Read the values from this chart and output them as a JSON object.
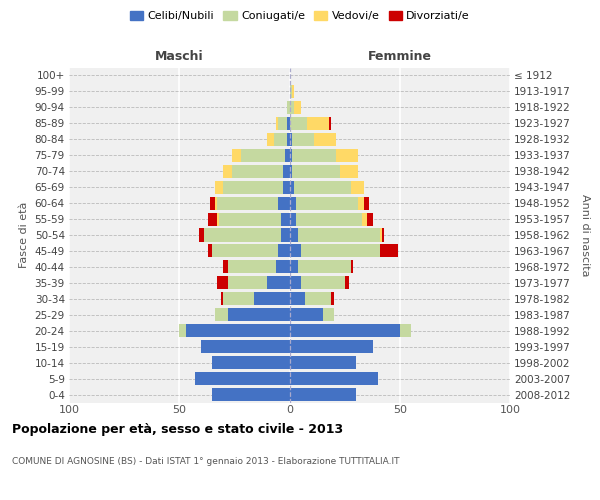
{
  "age_groups": [
    "0-4",
    "5-9",
    "10-14",
    "15-19",
    "20-24",
    "25-29",
    "30-34",
    "35-39",
    "40-44",
    "45-49",
    "50-54",
    "55-59",
    "60-64",
    "65-69",
    "70-74",
    "75-79",
    "80-84",
    "85-89",
    "90-94",
    "95-99",
    "100+"
  ],
  "birth_years": [
    "2008-2012",
    "2003-2007",
    "1998-2002",
    "1993-1997",
    "1988-1992",
    "1983-1987",
    "1978-1982",
    "1973-1977",
    "1968-1972",
    "1963-1967",
    "1958-1962",
    "1953-1957",
    "1948-1952",
    "1943-1947",
    "1938-1942",
    "1933-1937",
    "1928-1932",
    "1923-1927",
    "1918-1922",
    "1913-1917",
    "≤ 1912"
  ],
  "colors": {
    "celibi": "#4472c4",
    "coniugati": "#c5d9a0",
    "vedovi": "#ffd966",
    "divorziati": "#cc0000"
  },
  "males": {
    "celibi": [
      35,
      43,
      35,
      40,
      47,
      28,
      16,
      10,
      6,
      5,
      4,
      4,
      5,
      3,
      3,
      2,
      1,
      1,
      0,
      0,
      0
    ],
    "coniugati": [
      0,
      0,
      0,
      0,
      3,
      6,
      14,
      18,
      22,
      30,
      35,
      28,
      28,
      27,
      23,
      20,
      6,
      4,
      1,
      0,
      0
    ],
    "vedovi": [
      0,
      0,
      0,
      0,
      0,
      0,
      0,
      0,
      0,
      0,
      0,
      1,
      1,
      4,
      4,
      4,
      3,
      1,
      0,
      0,
      0
    ],
    "divorziati": [
      0,
      0,
      0,
      0,
      0,
      0,
      1,
      5,
      2,
      2,
      2,
      4,
      2,
      0,
      0,
      0,
      0,
      0,
      0,
      0,
      0
    ]
  },
  "females": {
    "celibi": [
      30,
      40,
      30,
      38,
      50,
      15,
      7,
      5,
      4,
      5,
      4,
      3,
      3,
      2,
      1,
      1,
      1,
      0,
      0,
      0,
      0
    ],
    "coniugati": [
      0,
      0,
      0,
      0,
      5,
      5,
      12,
      20,
      24,
      36,
      37,
      30,
      28,
      26,
      22,
      20,
      10,
      8,
      2,
      1,
      0
    ],
    "vedovi": [
      0,
      0,
      0,
      0,
      0,
      0,
      0,
      0,
      0,
      0,
      1,
      2,
      3,
      6,
      8,
      10,
      10,
      10,
      3,
      1,
      0
    ],
    "divorziati": [
      0,
      0,
      0,
      0,
      0,
      0,
      1,
      2,
      1,
      8,
      1,
      3,
      2,
      0,
      0,
      0,
      0,
      1,
      0,
      0,
      0
    ]
  },
  "xlim": 100,
  "title": "Popolazione per età, sesso e stato civile - 2013",
  "subtitle": "COMUNE DI AGNOSINE (BS) - Dati ISTAT 1° gennaio 2013 - Elaborazione TUTTITALIA.IT",
  "ylabel_left": "Fasce di età",
  "ylabel_right": "Anni di nascita",
  "xlabel_left": "Maschi",
  "xlabel_right": "Femmine",
  "bg_color": "#f0f0f0",
  "grid_color": "#cccccc"
}
